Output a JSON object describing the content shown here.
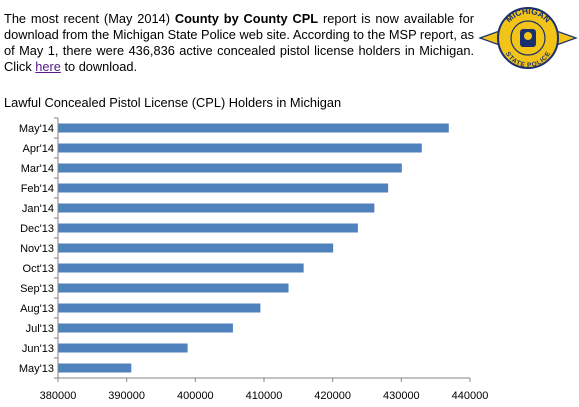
{
  "intro": {
    "part1": "The most recent (May 2014) ",
    "bold": "County by County CPL",
    "part2": " report is now available for download from the Michigan State Police web site. According to the MSP report, as of May 1, there were 436,836 active concealed pistol license holders in Michigan. Click ",
    "link": "here",
    "part3": " to download."
  },
  "badge": {
    "top_text": "MICHIGAN",
    "bottom_text": "STATE POLICE",
    "colors": {
      "gold": "#f2c418",
      "navy": "#1a2f6e"
    }
  },
  "chart_data": {
    "type": "bar",
    "orientation": "horizontal",
    "title": "Lawful Concealed Pistol License (CPL) Holders in Michigan",
    "categories": [
      "May'14",
      "Apr'14",
      "Mar'14",
      "Feb'14",
      "Jan'14",
      "Dec'13",
      "Nov'13",
      "Oct'13",
      "Sep'13",
      "Aug'13",
      "Jul'13",
      "Jun'13",
      "May'13"
    ],
    "values": [
      436836,
      432900,
      430000,
      428000,
      426000,
      423600,
      420000,
      415700,
      413500,
      409400,
      405400,
      398800,
      390600
    ],
    "xlim": [
      380000,
      440000
    ],
    "xticks": [
      "380000",
      "390000",
      "400000",
      "410000",
      "420000",
      "430000",
      "440000"
    ],
    "bar_color": "#4f81bd",
    "grid": false
  }
}
